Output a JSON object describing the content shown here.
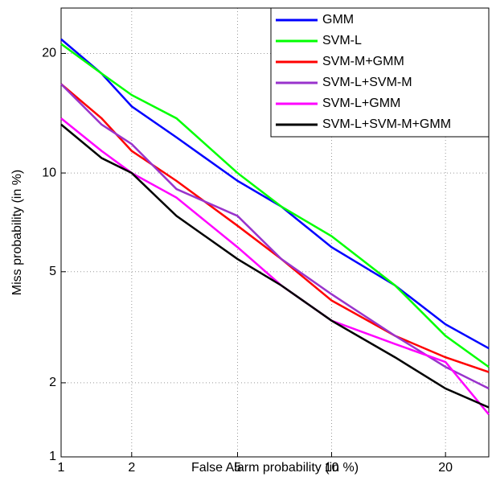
{
  "chart_data": {
    "type": "line",
    "scale": "probit",
    "grid": true,
    "legend": "upper right",
    "xlabel": "False Alarm probability (in %)",
    "ylabel": "Miss probability (in %)",
    "xlim": [
      1,
      25
    ],
    "ylim": [
      1,
      25
    ],
    "xticks": [
      1,
      2,
      5,
      10,
      20
    ],
    "yticks": [
      1,
      2,
      5,
      10,
      20
    ],
    "x": [
      1,
      1.5,
      2,
      3,
      5,
      7,
      10,
      15,
      20,
      25
    ],
    "series": [
      {
        "name": "GMM",
        "color": "#0000ff",
        "values": [
          21.5,
          18,
          15,
          12.5,
          9.5,
          8,
          6,
          4.5,
          3.3,
          2.7
        ]
      },
      {
        "name": "SVM-L",
        "color": "#00ff00",
        "values": [
          21,
          18,
          16,
          14,
          10,
          8,
          6.5,
          4.5,
          3,
          2.3
        ]
      },
      {
        "name": "SVM-M+GMM",
        "color": "#ff0000",
        "values": [
          17,
          14,
          11.5,
          9.5,
          7,
          5.5,
          4,
          3,
          2.5,
          2.2
        ]
      },
      {
        "name": "SVM-L+SVM-M",
        "color": "#9933cc",
        "values": [
          17,
          13.5,
          12,
          9,
          7.5,
          5.5,
          4.2,
          3,
          2.3,
          1.9
        ]
      },
      {
        "name": "SVM-L+GMM",
        "color": "#ff00ff",
        "values": [
          14,
          11.5,
          10,
          8.5,
          6,
          4.5,
          3.4,
          2.8,
          2.4,
          1.5
        ]
      },
      {
        "name": "SVM-L+SVM-M+GMM",
        "color": "#000000",
        "values": [
          13.5,
          11,
          10,
          7.5,
          5.5,
          4.5,
          3.4,
          2.5,
          1.9,
          1.6
        ]
      }
    ]
  }
}
